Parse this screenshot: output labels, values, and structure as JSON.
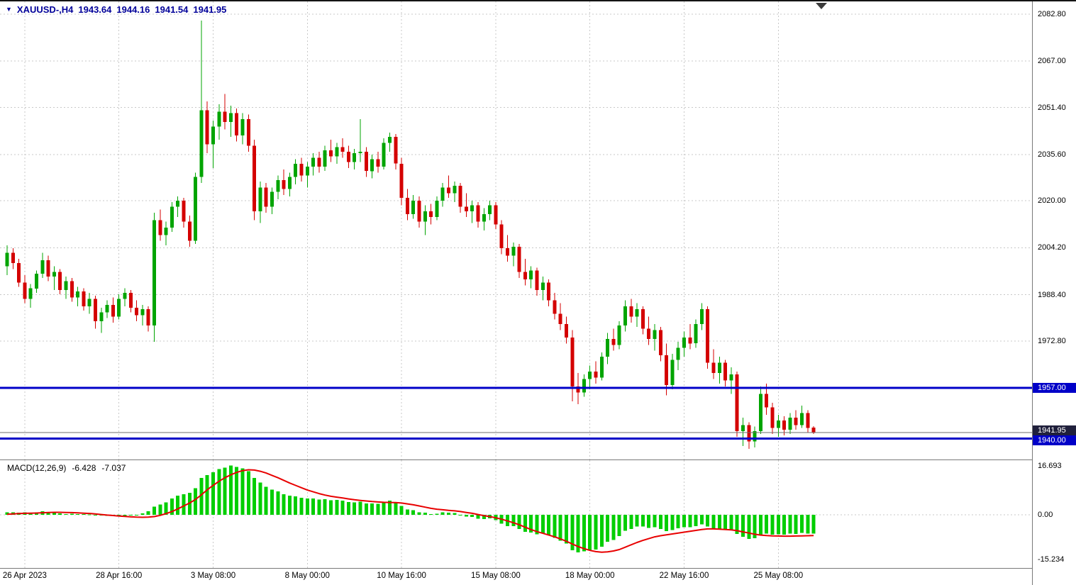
{
  "header": {
    "menu_arrow": "▼",
    "symbol_period": "XAUUSD-,H4",
    "open": "1943.64",
    "high": "1944.16",
    "low": "1941.54",
    "close": "1941.95"
  },
  "colors": {
    "background": "#FFFFFF",
    "grid": "#C8C8C8",
    "up": "#00A400",
    "down": "#D40000",
    "macd_hist": "#00CE00",
    "macd_signal": "#E80000",
    "hline": "#0000C8",
    "price_line": "#6E6E6E",
    "price_tag_bg": "#20203C",
    "header_text": "#000099",
    "axis_text": "#000000",
    "separator": "#787878",
    "shift_marker": "#3A3A3A"
  },
  "chart_data": [
    {
      "type": "candlestick",
      "symbol": "XAUUSD-",
      "timeframe": "H4",
      "ylim": [
        1933.0,
        2086.6
      ],
      "grid": true,
      "y_axis": {
        "ticks": [
          2082.8,
          2067.0,
          2051.4,
          2035.6,
          2020.0,
          2004.2,
          1988.4,
          1972.8
        ],
        "labels": [
          "2082.80",
          "2067.00",
          "2051.40",
          "2035.60",
          "2020.00",
          "2004.20",
          "1988.40",
          "1972.80"
        ]
      },
      "x_axis": {
        "labels": [
          "26 Apr 2023",
          "28 Apr 16:00",
          "3 May 08:00",
          "8 May 00:00",
          "10 May 16:00",
          "15 May 08:00",
          "18 May 00:00",
          "22 May 16:00",
          "25 May 08:00"
        ],
        "bar_indices": [
          3,
          19,
          35,
          51,
          67,
          83,
          99,
          115,
          131
        ]
      },
      "hlines": [
        {
          "value": 1957.0,
          "label": "1957.00",
          "color": "#0000C8",
          "width": 3
        },
        {
          "value": 1940.0,
          "label": "1940.00",
          "color": "#0000C8",
          "width": 3
        }
      ],
      "price_marker": {
        "value": 1941.95,
        "label": "1941.95",
        "line_color": "#6E6E6E",
        "tag_color": "#20203C"
      },
      "ohlc": [
        [
          1998.0,
          2005.0,
          1995.0,
          2002.5
        ],
        [
          2002.5,
          2004.0,
          1997.0,
          1999.0
        ],
        [
          1999.0,
          2000.5,
          1991.0,
          1992.5
        ],
        [
          1992.5,
          1995.0,
          1985.5,
          1987.0
        ],
        [
          1987.0,
          1992.0,
          1984.0,
          1990.5
        ],
        [
          1990.5,
          1996.5,
          1989.0,
          1995.5
        ],
        [
          1995.5,
          2002.5,
          1994.0,
          2000.0
        ],
        [
          2000.0,
          2001.5,
          1993.0,
          1994.5
        ],
        [
          1994.5,
          1998.0,
          1990.0,
          1996.0
        ],
        [
          1996.0,
          1997.0,
          1988.5,
          1990.0
        ],
        [
          1990.0,
          1994.5,
          1987.0,
          1993.0
        ],
        [
          1993.0,
          1994.0,
          1986.0,
          1987.5
        ],
        [
          1987.5,
          1991.0,
          1984.5,
          1989.5
        ],
        [
          1989.5,
          1990.5,
          1983.0,
          1984.5
        ],
        [
          1984.5,
          1989.0,
          1982.0,
          1987.0
        ],
        [
          1987.0,
          1988.0,
          1977.0,
          1979.5
        ],
        [
          1979.5,
          1984.0,
          1975.5,
          1982.5
        ],
        [
          1982.5,
          1986.5,
          1980.5,
          1985.0
        ],
        [
          1985.0,
          1987.5,
          1979.0,
          1981.0
        ],
        [
          1981.0,
          1988.5,
          1980.0,
          1987.0
        ],
        [
          1987.0,
          1990.5,
          1984.5,
          1989.0
        ],
        [
          1989.0,
          1990.0,
          1982.5,
          1984.0
        ],
        [
          1984.0,
          1986.5,
          1979.5,
          1981.5
        ],
        [
          1981.5,
          1985.0,
          1978.0,
          1983.5
        ],
        [
          1983.5,
          1984.5,
          1976.0,
          1978.0
        ],
        [
          1978.0,
          2016.0,
          1972.5,
          2013.5
        ],
        [
          2013.5,
          2017.0,
          2006.5,
          2008.5
        ],
        [
          2008.5,
          2013.0,
          2005.0,
          2011.0
        ],
        [
          2011.0,
          2019.5,
          2009.5,
          2018.0
        ],
        [
          2018.0,
          2021.5,
          2014.5,
          2020.0
        ],
        [
          2020.0,
          2021.0,
          2011.0,
          2013.0
        ],
        [
          2013.0,
          2015.0,
          2004.5,
          2006.5
        ],
        [
          2006.5,
          2029.5,
          2005.5,
          2028.0
        ],
        [
          2028.0,
          2080.7,
          2026.0,
          2050.5
        ],
        [
          2050.5,
          2053.5,
          2036.0,
          2039.0
        ],
        [
          2039.0,
          2047.0,
          2031.0,
          2045.0
        ],
        [
          2045.0,
          2052.5,
          2040.5,
          2050.0
        ],
        [
          2050.0,
          2056.0,
          2044.0,
          2046.5
        ],
        [
          2046.5,
          2052.0,
          2041.5,
          2049.5
        ],
        [
          2049.5,
          2051.0,
          2040.0,
          2042.0
        ],
        [
          2042.0,
          2049.5,
          2039.0,
          2047.5
        ],
        [
          2047.5,
          2049.0,
          2036.5,
          2038.5
        ],
        [
          2038.5,
          2040.5,
          2013.5,
          2016.5
        ],
        [
          2016.5,
          2026.5,
          2012.5,
          2024.5
        ],
        [
          2024.5,
          2026.0,
          2016.0,
          2018.0
        ],
        [
          2018.0,
          2024.5,
          2015.5,
          2023.0
        ],
        [
          2023.0,
          2028.5,
          2020.5,
          2027.0
        ],
        [
          2027.0,
          2030.5,
          2022.0,
          2024.0
        ],
        [
          2024.0,
          2029.5,
          2021.5,
          2028.0
        ],
        [
          2028.0,
          2034.0,
          2025.5,
          2032.5
        ],
        [
          2032.5,
          2034.5,
          2026.5,
          2028.5
        ],
        [
          2028.5,
          2033.0,
          2024.5,
          2031.5
        ],
        [
          2031.5,
          2036.0,
          2028.5,
          2034.5
        ],
        [
          2034.5,
          2036.5,
          2029.5,
          2031.5
        ],
        [
          2031.5,
          2038.5,
          2030.0,
          2037.0
        ],
        [
          2037.0,
          2040.5,
          2033.0,
          2035.0
        ],
        [
          2035.0,
          2039.5,
          2032.5,
          2038.0
        ],
        [
          2038.0,
          2041.0,
          2034.5,
          2036.5
        ],
        [
          2036.5,
          2038.5,
          2031.0,
          2033.0
        ],
        [
          2033.0,
          2037.5,
          2030.5,
          2036.0
        ],
        [
          2036.0,
          2047.5,
          2033.0,
          2036.5
        ],
        [
          2036.5,
          2038.0,
          2028.0,
          2030.0
        ],
        [
          2030.0,
          2035.5,
          2027.5,
          2034.0
        ],
        [
          2034.0,
          2036.5,
          2029.5,
          2031.5
        ],
        [
          2031.5,
          2041.0,
          2030.5,
          2039.5
        ],
        [
          2039.5,
          2043.0,
          2036.5,
          2041.5
        ],
        [
          2041.5,
          2042.5,
          2030.5,
          2032.5
        ],
        [
          2032.5,
          2034.5,
          2018.5,
          2021.0
        ],
        [
          2021.0,
          2024.0,
          2013.5,
          2015.5
        ],
        [
          2015.5,
          2022.0,
          2014.0,
          2020.0
        ],
        [
          2020.0,
          2021.5,
          2011.0,
          2013.0
        ],
        [
          2013.0,
          2018.5,
          2008.5,
          2016.5
        ],
        [
          2016.5,
          2019.0,
          2012.0,
          2014.5
        ],
        [
          2014.5,
          2021.5,
          2013.5,
          2020.0
        ],
        [
          2020.0,
          2026.0,
          2018.0,
          2024.5
        ],
        [
          2024.5,
          2028.5,
          2021.0,
          2022.5
        ],
        [
          2022.5,
          2026.5,
          2019.5,
          2025.0
        ],
        [
          2025.0,
          2026.0,
          2016.0,
          2018.0
        ],
        [
          2018.0,
          2022.5,
          2014.5,
          2016.5
        ],
        [
          2016.5,
          2020.0,
          2012.5,
          2018.5
        ],
        [
          2018.5,
          2019.5,
          2011.0,
          2013.0
        ],
        [
          2013.0,
          2017.5,
          2010.0,
          2015.5
        ],
        [
          2015.5,
          2020.0,
          2013.5,
          2018.5
        ],
        [
          2018.5,
          2019.5,
          2010.5,
          2012.0
        ],
        [
          2012.0,
          2013.5,
          2002.0,
          2004.0
        ],
        [
          2004.0,
          2008.5,
          1999.5,
          2001.5
        ],
        [
          2001.5,
          2006.0,
          1998.0,
          2004.5
        ],
        [
          2004.5,
          2005.5,
          1994.0,
          1996.0
        ],
        [
          1996.0,
          2000.5,
          1991.5,
          1993.5
        ],
        [
          1993.5,
          1998.0,
          1990.5,
          1996.5
        ],
        [
          1996.5,
          1997.5,
          1988.0,
          1990.0
        ],
        [
          1990.0,
          1994.5,
          1986.5,
          1992.5
        ],
        [
          1992.5,
          1993.5,
          1984.5,
          1986.5
        ],
        [
          1986.5,
          1989.0,
          1980.0,
          1982.0
        ],
        [
          1982.0,
          1985.5,
          1976.5,
          1978.5
        ],
        [
          1978.5,
          1981.0,
          1972.0,
          1974.0
        ],
        [
          1974.0,
          1976.5,
          1952.5,
          1957.5
        ],
        [
          1957.5,
          1962.0,
          1951.5,
          1955.5
        ],
        [
          1955.5,
          1961.5,
          1954.0,
          1960.0
        ],
        [
          1960.0,
          1964.5,
          1956.5,
          1962.5
        ],
        [
          1962.5,
          1966.0,
          1958.5,
          1960.5
        ],
        [
          1960.5,
          1969.0,
          1959.5,
          1967.5
        ],
        [
          1967.5,
          1975.5,
          1965.0,
          1973.5
        ],
        [
          1973.5,
          1977.0,
          1969.5,
          1971.5
        ],
        [
          1971.5,
          1979.5,
          1970.0,
          1978.0
        ],
        [
          1978.0,
          1986.5,
          1976.0,
          1984.5
        ],
        [
          1984.5,
          1987.0,
          1979.0,
          1981.0
        ],
        [
          1981.0,
          1985.5,
          1977.5,
          1983.5
        ],
        [
          1983.5,
          1984.5,
          1975.0,
          1977.0
        ],
        [
          1977.0,
          1981.0,
          1971.5,
          1973.5
        ],
        [
          1973.5,
          1978.5,
          1969.5,
          1976.5
        ],
        [
          1976.5,
          1977.5,
          1966.0,
          1968.0
        ],
        [
          1968.0,
          1972.0,
          1954.5,
          1958.0
        ],
        [
          1958.0,
          1968.5,
          1956.5,
          1966.5
        ],
        [
          1966.5,
          1972.5,
          1963.0,
          1970.5
        ],
        [
          1970.5,
          1976.0,
          1967.5,
          1974.0
        ],
        [
          1974.0,
          1978.5,
          1970.0,
          1972.0
        ],
        [
          1972.0,
          1980.0,
          1970.5,
          1978.5
        ],
        [
          1978.5,
          1985.5,
          1976.5,
          1983.5
        ],
        [
          1983.5,
          1984.5,
          1963.5,
          1965.5
        ],
        [
          1965.5,
          1970.0,
          1960.0,
          1962.0
        ],
        [
          1962.0,
          1967.5,
          1958.5,
          1965.5
        ],
        [
          1965.5,
          1966.5,
          1957.5,
          1959.5
        ],
        [
          1959.5,
          1964.0,
          1955.0,
          1961.5
        ],
        [
          1961.5,
          1962.5,
          1940.5,
          1942.5
        ],
        [
          1942.5,
          1947.0,
          1937.5,
          1944.5
        ],
        [
          1944.5,
          1945.5,
          1936.5,
          1939.0
        ],
        [
          1939.0,
          1944.0,
          1937.0,
          1942.5
        ],
        [
          1942.5,
          1957.5,
          1941.5,
          1955.0
        ],
        [
          1955.0,
          1958.5,
          1948.0,
          1950.5
        ],
        [
          1950.5,
          1952.0,
          1941.5,
          1943.5
        ],
        [
          1943.5,
          1948.0,
          1940.5,
          1946.0
        ],
        [
          1946.0,
          1947.5,
          1941.0,
          1943.0
        ],
        [
          1943.0,
          1948.5,
          1941.5,
          1947.0
        ],
        [
          1947.0,
          1949.5,
          1943.0,
          1944.5
        ],
        [
          1944.5,
          1951.0,
          1943.5,
          1948.5
        ],
        [
          1948.5,
          1949.5,
          1942.0,
          1943.5
        ],
        [
          1943.64,
          1944.16,
          1941.54,
          1941.95
        ]
      ]
    },
    {
      "type": "bar",
      "title": "MACD(12,26,9)",
      "main_value": "-6.428",
      "signal_value": "-7.037",
      "ylim": [
        -15.234,
        16.693
      ],
      "y_axis": {
        "ticks": [
          16.693,
          0.0,
          -15.234
        ],
        "labels": [
          "16.693",
          "0.00",
          "-15.234"
        ]
      },
      "histogram": [
        0.8,
        0.9,
        0.7,
        0.8,
        0.6,
        0.9,
        1.2,
        1.0,
        0.8,
        0.5,
        0.3,
        0.4,
        0.2,
        0.3,
        0.1,
        -0.2,
        -0.3,
        -0.4,
        -0.2,
        -0.3,
        -0.4,
        -0.2,
        -0.1,
        0.5,
        1.2,
        2.8,
        3.5,
        4.2,
        5.5,
        6.5,
        7.0,
        7.5,
        9.0,
        12.5,
        13.5,
        14.5,
        15.5,
        16.0,
        16.693,
        16.3,
        15.8,
        14.8,
        12.5,
        11.0,
        9.5,
        8.5,
        8.0,
        7.0,
        6.5,
        6.3,
        5.8,
        5.5,
        5.5,
        5.2,
        5.3,
        5.0,
        5.1,
        4.8,
        4.3,
        4.2,
        4.4,
        3.8,
        3.9,
        3.7,
        4.3,
        4.8,
        4.2,
        3.0,
        1.8,
        1.6,
        0.8,
        0.7,
        0.3,
        0.4,
        0.8,
        0.7,
        0.6,
        0.0,
        -0.6,
        -0.7,
        -1.3,
        -1.4,
        -1.2,
        -1.8,
        -3.0,
        -3.8,
        -3.9,
        -4.8,
        -5.8,
        -6.0,
        -6.6,
        -6.4,
        -6.9,
        -7.8,
        -8.8,
        -9.8,
        -12.0,
        -12.8,
        -12.4,
        -12.0,
        -11.8,
        -10.8,
        -9.2,
        -8.6,
        -7.2,
        -5.4,
        -4.8,
        -4.0,
        -4.0,
        -4.4,
        -4.2,
        -4.8,
        -5.6,
        -5.2,
        -4.6,
        -4.2,
        -4.2,
        -3.8,
        -3.2,
        -4.0,
        -4.8,
        -4.8,
        -5.2,
        -5.0,
        -6.5,
        -7.5,
        -8.2,
        -8.0,
        -6.8,
        -6.4,
        -6.8,
        -6.6,
        -6.8,
        -6.4,
        -6.5,
        -6.2,
        -6.4,
        -6.428
      ],
      "signal": [
        0.2,
        0.3,
        0.4,
        0.5,
        0.55,
        0.6,
        0.7,
        0.8,
        0.85,
        0.85,
        0.8,
        0.75,
        0.65,
        0.55,
        0.45,
        0.3,
        0.1,
        -0.1,
        -0.25,
        -0.4,
        -0.55,
        -0.7,
        -0.8,
        -0.85,
        -0.8,
        -0.6,
        -0.2,
        0.4,
        1.1,
        2.0,
        3.0,
        4.0,
        5.2,
        6.8,
        8.5,
        10.0,
        11.4,
        12.6,
        13.6,
        14.4,
        15.0,
        15.3,
        15.2,
        14.8,
        14.2,
        13.4,
        12.6,
        11.7,
        10.8,
        10.0,
        9.2,
        8.4,
        7.8,
        7.2,
        6.7,
        6.3,
        6.0,
        5.7,
        5.4,
        5.1,
        4.9,
        4.7,
        4.5,
        4.35,
        4.25,
        4.2,
        4.15,
        4.0,
        3.7,
        3.4,
        3.0,
        2.6,
        2.2,
        1.9,
        1.7,
        1.5,
        1.35,
        1.1,
        0.8,
        0.5,
        0.1,
        -0.3,
        -0.6,
        -1.0,
        -1.5,
        -2.1,
        -2.7,
        -3.4,
        -4.2,
        -5.0,
        -5.7,
        -6.3,
        -6.9,
        -7.5,
        -8.2,
        -9.0,
        -9.9,
        -10.8,
        -11.5,
        -12.1,
        -12.5,
        -12.7,
        -12.6,
        -12.3,
        -11.8,
        -11.0,
        -10.2,
        -9.4,
        -8.7,
        -8.1,
        -7.5,
        -7.1,
        -6.8,
        -6.5,
        -6.2,
        -5.9,
        -5.6,
        -5.3,
        -5.0,
        -4.8,
        -4.8,
        -4.9,
        -5.0,
        -5.1,
        -5.4,
        -5.8,
        -6.2,
        -6.6,
        -6.9,
        -7.05,
        -7.15,
        -7.2,
        -7.25,
        -7.25,
        -7.2,
        -7.15,
        -7.1,
        -7.037
      ]
    }
  ]
}
